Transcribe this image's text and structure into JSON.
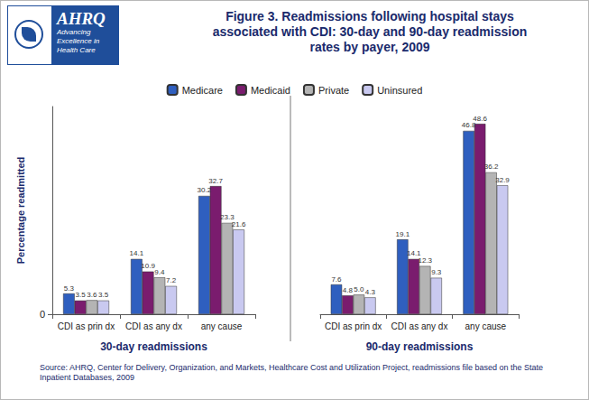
{
  "title": "Figure 3. Readmissions following hospital stays associated with CDI: 30-day and 90-day readmission rates by payer, 2009",
  "logo": {
    "name": "AHRQ",
    "tagline": "Advancing Excellence in Health Care"
  },
  "source": "Source: AHRQ, Center for Delivery, Organization, and Markets, Healthcare Cost and Utilization Project, readmissions file based on the State Inpatient Databases, 2009",
  "chart_data": [
    {
      "type": "bar",
      "xlabel": "30-day readmissions",
      "ylabel": "Percentage readmitted",
      "categories": [
        "CDI as prin dx",
        "CDI as any dx",
        "any cause"
      ],
      "series": [
        {
          "name": "Medicare",
          "color": "#2f5fbf",
          "values": [
            5.3,
            14.1,
            30.2
          ]
        },
        {
          "name": "Medicaid",
          "color": "#7a1c6e",
          "values": [
            3.5,
            10.9,
            32.7
          ]
        },
        {
          "name": "Private",
          "color": "#b4b4b4",
          "values": [
            3.6,
            9.4,
            23.3
          ]
        },
        {
          "name": "Uninsured",
          "color": "#c9c9f0",
          "values": [
            3.5,
            7.2,
            21.6
          ]
        }
      ],
      "ylim": [
        0,
        53
      ],
      "yticks": [
        0
      ],
      "grid": false,
      "legend": "top",
      "data_labels": true
    },
    {
      "type": "bar",
      "xlabel": "90-day readmissions",
      "categories": [
        "CDI as prin dx",
        "CDI as any dx",
        "any cause"
      ],
      "series": [
        {
          "name": "Medicare",
          "color": "#2f5fbf",
          "values": [
            7.6,
            19.1,
            46.8
          ]
        },
        {
          "name": "Medicaid",
          "color": "#7a1c6e",
          "values": [
            4.8,
            14.1,
            48.6
          ]
        },
        {
          "name": "Private",
          "color": "#b4b4b4",
          "values": [
            5.0,
            12.3,
            36.2
          ],
          "value_labels": [
            "5.0",
            "12.3",
            "36.2"
          ]
        },
        {
          "name": "Uninsured",
          "color": "#c9c9f0",
          "values": [
            4.3,
            9.3,
            32.9
          ]
        }
      ],
      "ylim": [
        0,
        53
      ],
      "grid": false,
      "data_labels": true,
      "tick_labels": "x"
    }
  ]
}
